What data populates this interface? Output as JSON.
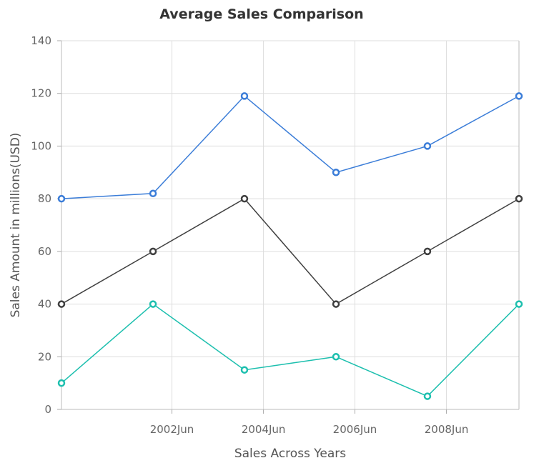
{
  "chart_data": {
    "type": "line",
    "title": "Average Sales Comparison",
    "xlabel": "Sales Across Years",
    "ylabel": "Sales Amount in millions(USD)",
    "ylim": [
      0,
      140
    ],
    "yticks": [
      0,
      20,
      40,
      60,
      80,
      100,
      120,
      140
    ],
    "xlim": [
      "2000-01-01",
      "2010-01-01"
    ],
    "xticks": [
      "2002Jun",
      "2004Jun",
      "2006Jun",
      "2008Jun"
    ],
    "xtick_dates": [
      "2002-06-01",
      "2004-06-01",
      "2006-06-01",
      "2008-06-01"
    ],
    "x": [
      "2000-01-01",
      "2002-01-01",
      "2004-01-01",
      "2006-01-01",
      "2008-01-01",
      "2010-01-01"
    ],
    "grid": true,
    "legend": "none",
    "series": [
      {
        "color": "#3b7dd8",
        "values": [
          80,
          82,
          119,
          90,
          100,
          119
        ]
      },
      {
        "color": "#404040",
        "values": [
          40,
          60,
          80,
          40,
          60,
          80
        ]
      },
      {
        "color": "#1cbfae",
        "values": [
          10,
          40,
          15,
          20,
          5,
          40
        ]
      }
    ]
  }
}
